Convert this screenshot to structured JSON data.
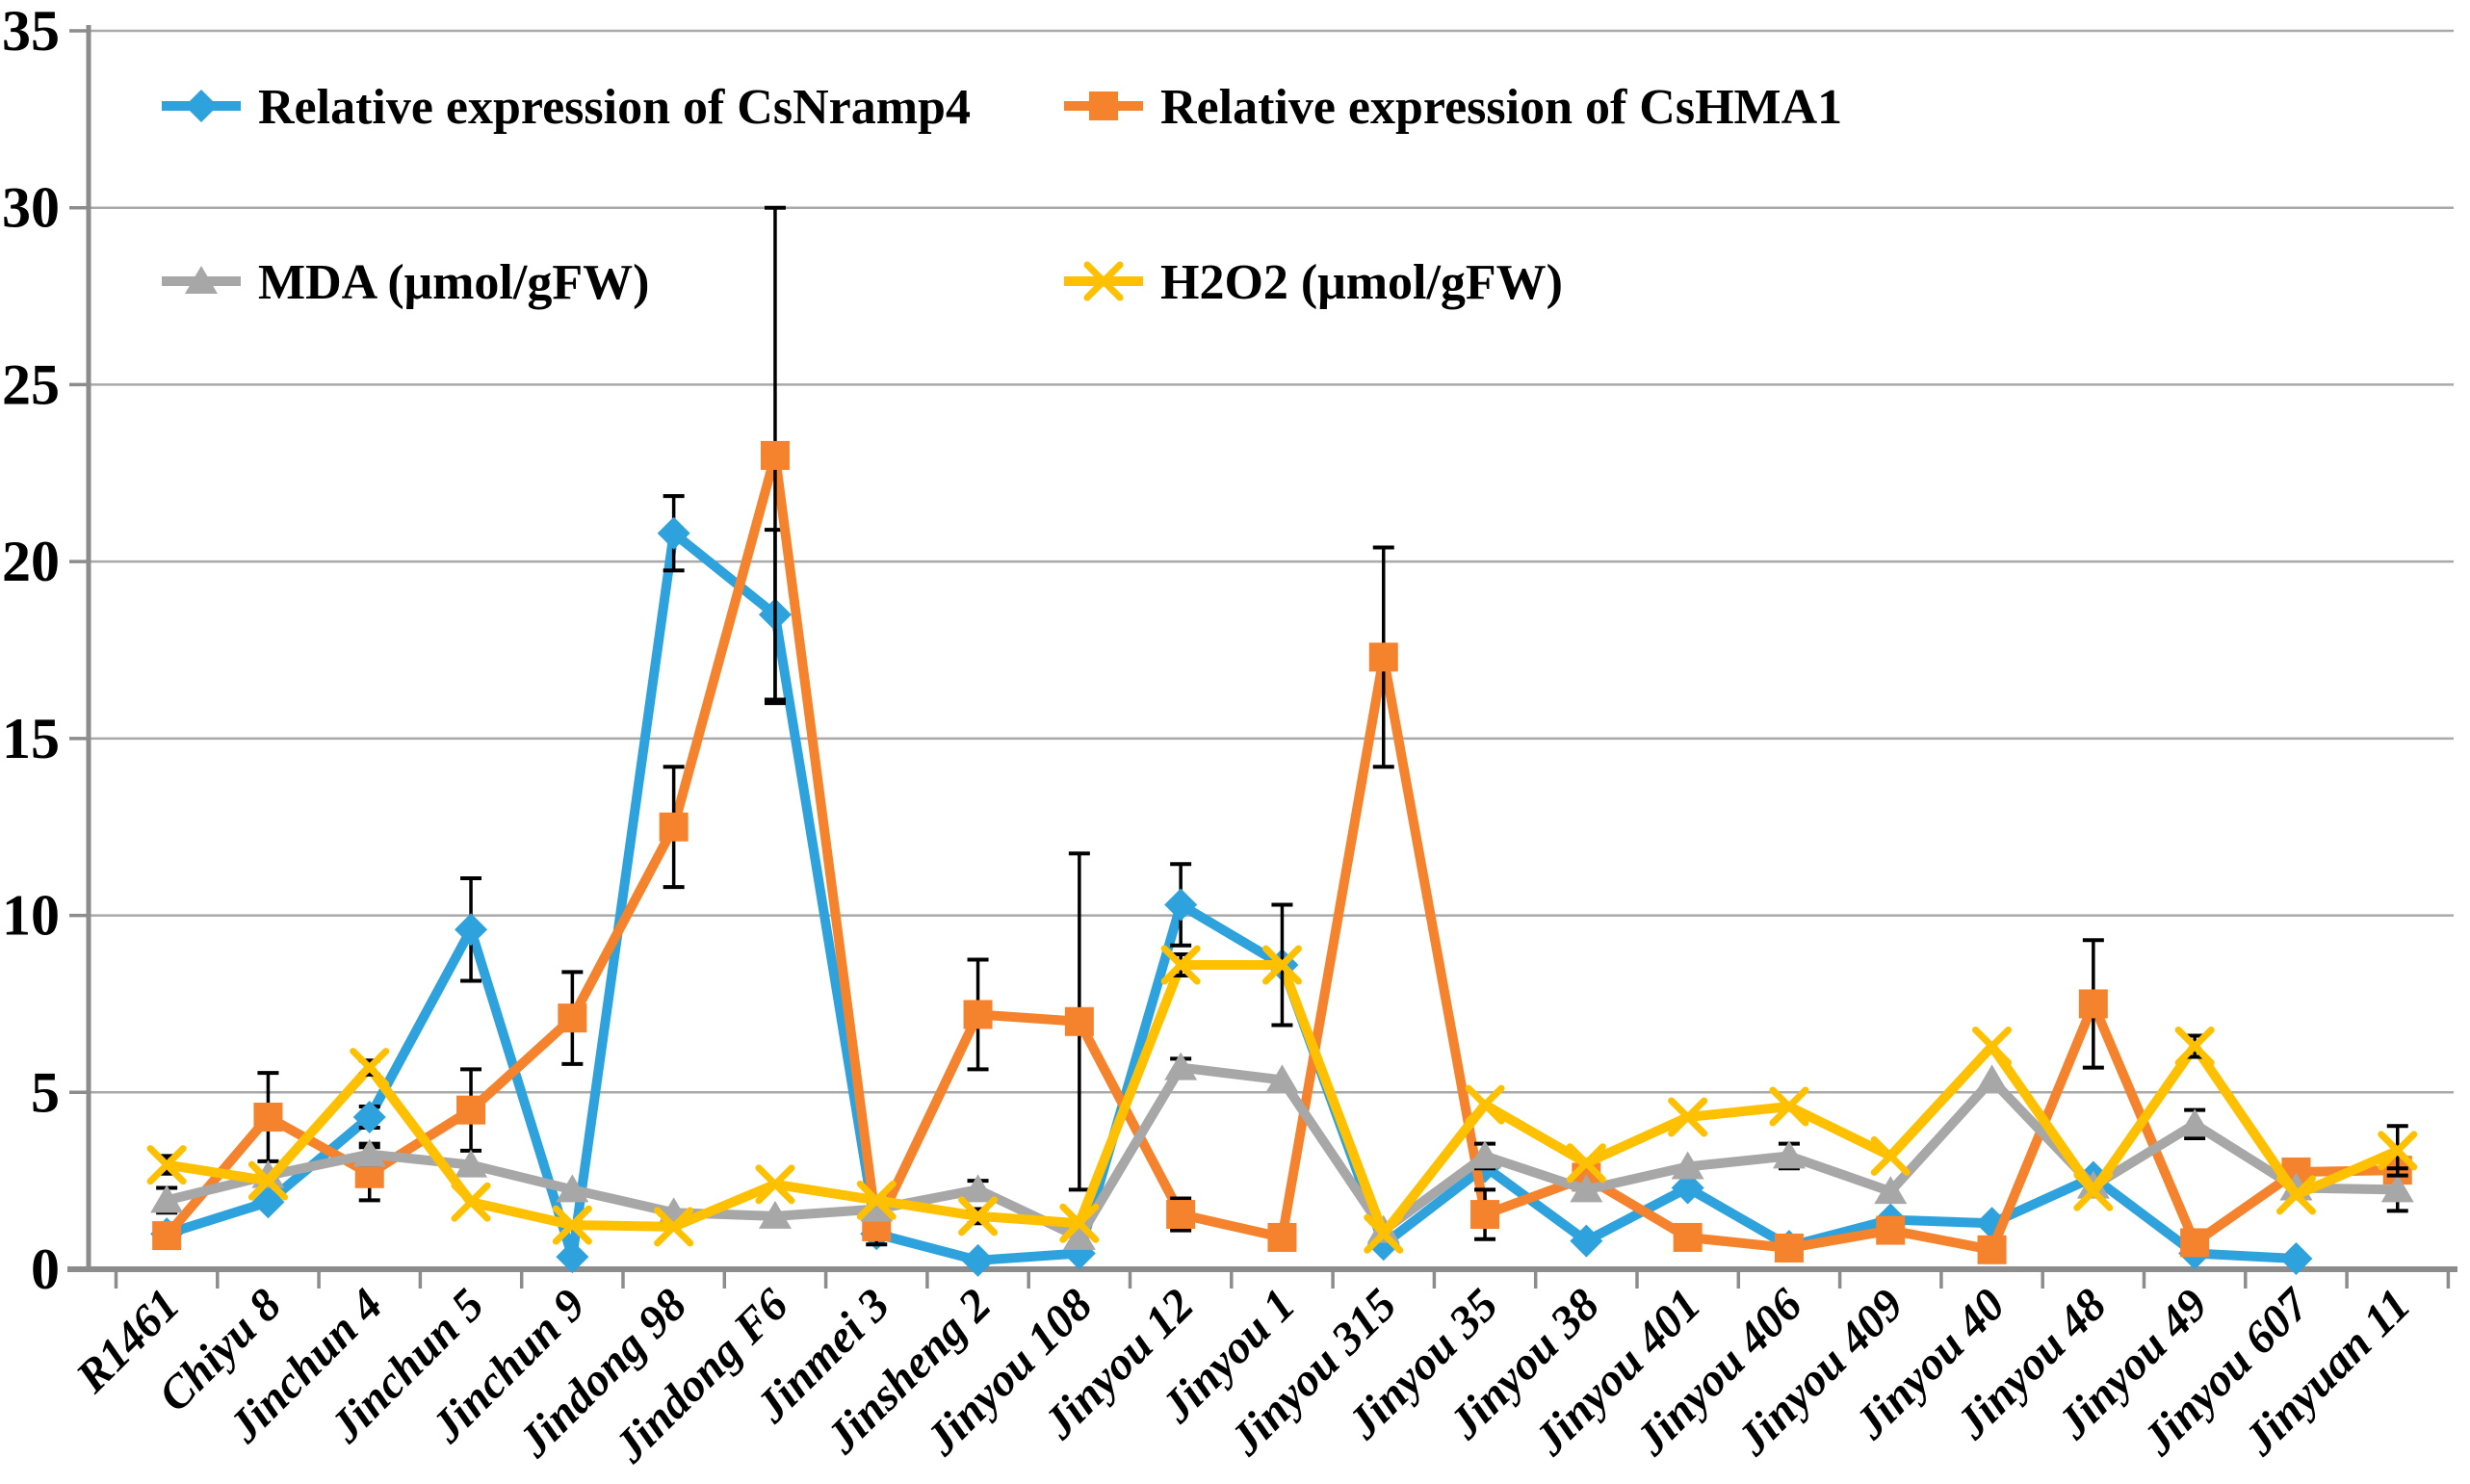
{
  "chart_data": {
    "type": "line",
    "title": "",
    "xlabel": "",
    "ylabel": "",
    "grid": true,
    "legend_position": "top-left, two columns inside plot",
    "background_color": "#FFFFFF",
    "gridline_color": "#A9A9A9",
    "axis_color": "#8C8C8C",
    "error_bar_color": "#000000",
    "y_axis": {
      "min": 0,
      "max": 35,
      "step": 5,
      "tick_labels": [
        "0",
        "5",
        "10",
        "15",
        "20",
        "25",
        "30",
        "35"
      ]
    },
    "categories": [
      "R1461",
      "Chiyu 8",
      "Jinchun 4",
      "Jinchun 5",
      "Jinchun 9",
      "Jindong 98",
      "Jindong F6",
      "Jinmei 3",
      "Jinsheng 2",
      "Jinyou 108",
      "Jinyou 12",
      "Jinyou 1",
      "Jinyou 315",
      "Jinyou 35",
      "Jinyou 38",
      "Jinyou 401",
      "Jinyou 406",
      "Jinyou 409",
      "Jinyou 40",
      "Jinyou 48",
      "Jinyou 49",
      "Jinyou 607",
      "Jinyuan 11"
    ],
    "series": [
      {
        "name": "Relative expression of CsNramp4",
        "color": "#2EA2DC",
        "marker": "diamond",
        "values": [
          1.0,
          1.9,
          4.3,
          9.6,
          0.35,
          20.8,
          18.5,
          1.0,
          0.25,
          0.45,
          10.3,
          8.6,
          0.7,
          2.9,
          0.8,
          2.3,
          0.65,
          1.4,
          1.3,
          2.6,
          0.45,
          0.3,
          null
        ],
        "errors": [
          0,
          0,
          0.3,
          1.45,
          0,
          1.05,
          2.4,
          0,
          0,
          0,
          1.15,
          0,
          0,
          0,
          0,
          0,
          0,
          0,
          0,
          0,
          0,
          0,
          0
        ]
      },
      {
        "name": "Relative expression of CsHMA1",
        "color": "#F5822C",
        "marker": "square",
        "values": [
          0.95,
          4.3,
          2.7,
          4.5,
          7.1,
          12.5,
          23.0,
          1.2,
          7.2,
          7.0,
          1.55,
          0.9,
          17.3,
          1.55,
          2.6,
          0.9,
          0.6,
          1.1,
          0.55,
          7.5,
          0.75,
          2.75,
          2.8
        ],
        "errors": [
          0,
          1.25,
          0.75,
          1.15,
          1.3,
          1.7,
          7.0,
          0.5,
          1.55,
          4.75,
          0.45,
          0,
          3.1,
          0.7,
          0,
          0,
          0,
          0,
          0,
          1.8,
          0,
          0,
          0.3
        ]
      },
      {
        "name": "MDA (μmol/gFW)",
        "color": "#A7A7A7",
        "marker": "triangle",
        "values": [
          1.95,
          2.65,
          3.25,
          2.95,
          2.25,
          1.6,
          1.5,
          1.7,
          2.25,
          0.9,
          5.7,
          5.35,
          1.1,
          3.2,
          2.25,
          2.9,
          3.2,
          2.2,
          5.35,
          2.35,
          4.1,
          2.3,
          2.25
        ],
        "errors": [
          0.35,
          0,
          0.3,
          0,
          0,
          0,
          0,
          0,
          0.25,
          0,
          0.25,
          0,
          0,
          0.35,
          0,
          0,
          0.35,
          0,
          0,
          0,
          0.4,
          0,
          0.6
        ]
      },
      {
        "name": "H2O2  (μmol/gFW)",
        "color": "#FFC000",
        "marker": "x",
        "values": [
          2.95,
          2.5,
          5.7,
          1.9,
          1.25,
          1.2,
          2.4,
          1.95,
          1.5,
          1.3,
          8.6,
          8.6,
          1.0,
          4.65,
          3.0,
          4.3,
          4.6,
          3.2,
          6.3,
          2.2,
          6.3,
          2.1,
          3.35
        ],
        "errors": [
          0.25,
          0,
          0.2,
          0,
          0,
          0,
          0,
          0,
          0.2,
          0,
          0.3,
          1.7,
          0,
          0,
          0,
          0,
          0,
          0,
          0,
          0,
          0.3,
          0,
          0.7
        ]
      }
    ]
  }
}
